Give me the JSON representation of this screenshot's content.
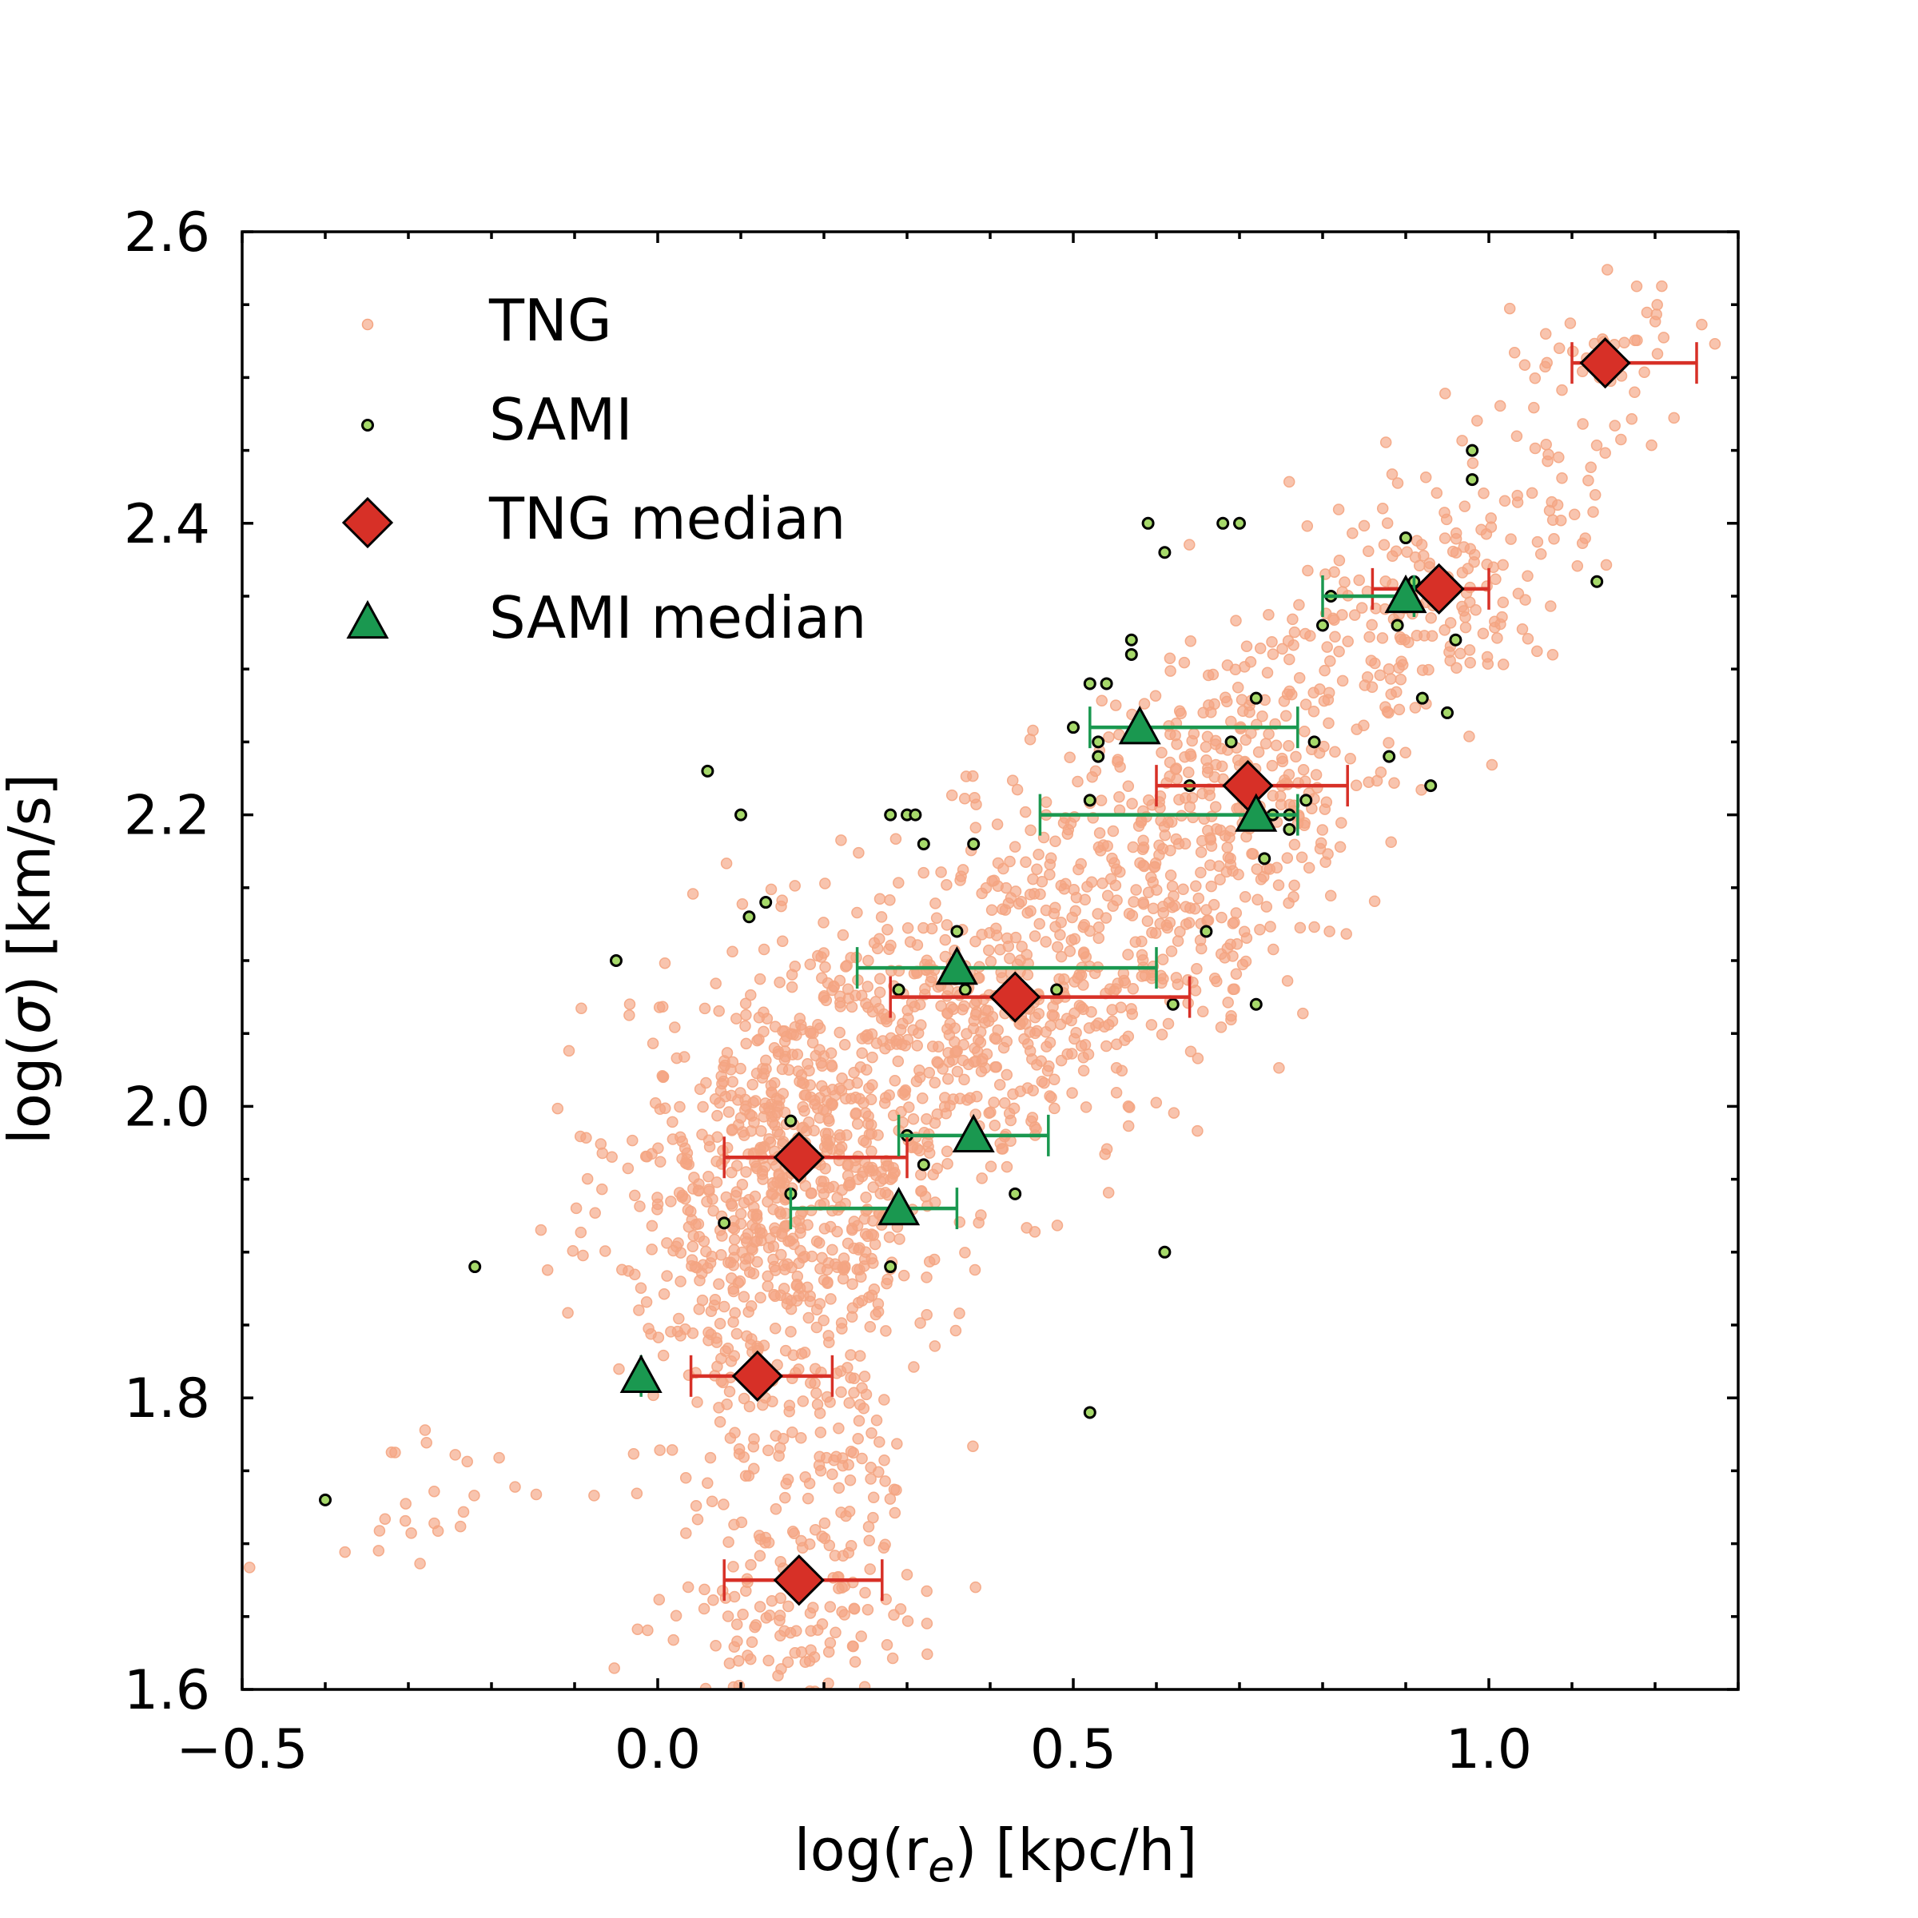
{
  "chart_data": {
    "type": "scatter",
    "xlabel": "log(r",
    "xlabel_sub": "e",
    "xlabel_unit": ") [kpc/h]",
    "ylabel": "log(",
    "ylabel_sym": "σ",
    "ylabel_unit": ") [km/s]",
    "xlim": [
      -0.5,
      1.3
    ],
    "ylim": [
      1.6,
      2.6
    ],
    "x_ticks": [
      -0.5,
      0.0,
      0.5,
      1.0
    ],
    "x_tick_labels": [
      "−0.5",
      "0.0",
      "0.5",
      "1.0"
    ],
    "y_ticks": [
      1.6,
      1.8,
      2.0,
      2.2,
      2.4,
      2.6
    ],
    "y_tick_labels": [
      "1.6",
      "1.8",
      "2.0",
      "2.2",
      "2.4",
      "2.6"
    ],
    "grid": false,
    "legend_position": "top-left",
    "colors": {
      "tng": "#f4a582",
      "sami_fill": "#a6d96a",
      "tng_median": "#d73027",
      "sami_median": "#1a9850",
      "edge": "#000000"
    },
    "legend": [
      {
        "label": "TNG",
        "marker": "dot"
      },
      {
        "label": "SAMI",
        "marker": "small-circle"
      },
      {
        "label": "TNG median",
        "marker": "diamond"
      },
      {
        "label": "SAMI median",
        "marker": "triangle"
      }
    ],
    "series": [
      {
        "name": "TNG",
        "type": "scatter",
        "clusters": [
          {
            "cx": 0.15,
            "cy": 1.95,
            "sx": 0.1,
            "sy": 0.075,
            "rho": 0.15,
            "n": 700
          },
          {
            "cx": 0.4,
            "cy": 2.07,
            "sx": 0.14,
            "sy": 0.07,
            "rho": 0.45,
            "n": 600
          },
          {
            "cx": 0.68,
            "cy": 2.2,
            "sx": 0.12,
            "sy": 0.07,
            "rho": 0.45,
            "n": 400
          },
          {
            "cx": 0.93,
            "cy": 2.35,
            "sx": 0.09,
            "sy": 0.05,
            "rho": 0.4,
            "n": 160
          },
          {
            "cx": 1.13,
            "cy": 2.49,
            "sx": 0.08,
            "sy": 0.05,
            "rho": 0.3,
            "n": 60
          },
          {
            "cx": 0.17,
            "cy": 1.74,
            "sx": 0.08,
            "sy": 0.06,
            "rho": 0.0,
            "n": 180
          },
          {
            "cx": 0.16,
            "cy": 1.64,
            "sx": 0.07,
            "sy": 0.025,
            "rho": 0.0,
            "n": 70
          },
          {
            "cx": -0.3,
            "cy": 1.72,
            "sx": 0.1,
            "sy": 0.03,
            "rho": 0.0,
            "n": 25
          }
        ]
      },
      {
        "name": "SAMI",
        "type": "scatter",
        "x": [
          -0.4,
          -0.22,
          -0.05,
          0.06,
          0.1,
          0.11,
          0.13,
          0.16,
          0.08,
          0.16,
          0.28,
          0.29,
          0.3,
          0.31,
          0.32,
          0.36,
          0.38,
          0.3,
          0.32,
          0.37,
          0.43,
          0.48,
          0.5,
          0.52,
          0.52,
          0.53,
          0.53,
          0.54,
          0.57,
          0.57,
          0.59,
          0.61,
          0.62,
          0.64,
          0.66,
          0.68,
          0.69,
          0.7,
          0.72,
          0.73,
          0.74,
          0.76,
          0.76,
          0.78,
          0.79,
          0.8,
          0.81,
          0.88,
          0.89,
          0.9,
          0.91,
          0.92,
          0.93,
          0.95,
          0.96,
          0.98,
          0.98,
          1.13,
          0.61,
          0.52,
          0.28,
          0.72
        ],
        "y": [
          1.73,
          1.89,
          2.1,
          2.23,
          2.2,
          2.13,
          2.14,
          1.99,
          1.92,
          1.94,
          2.2,
          2.08,
          2.2,
          2.2,
          2.18,
          2.12,
          2.18,
          1.98,
          1.96,
          2.08,
          1.94,
          2.08,
          2.26,
          2.21,
          2.29,
          2.25,
          2.24,
          2.29,
          2.31,
          2.32,
          2.4,
          2.38,
          2.07,
          2.22,
          2.12,
          2.4,
          2.25,
          2.4,
          2.28,
          2.17,
          2.2,
          2.19,
          2.2,
          2.21,
          2.25,
          2.33,
          2.35,
          2.24,
          2.33,
          2.39,
          2.36,
          2.28,
          2.22,
          2.27,
          2.32,
          2.43,
          2.45,
          2.36,
          1.9,
          1.79,
          1.89,
          2.07
        ]
      },
      {
        "name": "TNG median",
        "type": "errorbar",
        "x": [
          0.17,
          0.12,
          0.17,
          0.43,
          0.71,
          0.94,
          1.14
        ],
        "y": [
          1.675,
          1.815,
          1.965,
          2.075,
          2.22,
          2.355,
          2.51
        ],
        "xerr_low": [
          0.08,
          0.04,
          0.08,
          0.28,
          0.6,
          0.86,
          1.1
        ],
        "xerr_high": [
          0.27,
          0.21,
          0.3,
          0.64,
          0.83,
          1.0,
          1.25
        ]
      },
      {
        "name": "SAMI median",
        "type": "errorbar",
        "x": [
          -0.02,
          0.29,
          0.38,
          0.36,
          0.72,
          0.58,
          0.9
        ],
        "y": [
          1.815,
          1.93,
          1.98,
          2.095,
          2.2,
          2.26,
          2.35
        ],
        "xerr_low": [
          -0.02,
          0.16,
          0.29,
          0.24,
          0.46,
          0.52,
          0.8
        ],
        "xerr_high": [
          -0.02,
          0.36,
          0.47,
          0.6,
          0.77,
          0.77,
          0.91
        ]
      }
    ]
  }
}
